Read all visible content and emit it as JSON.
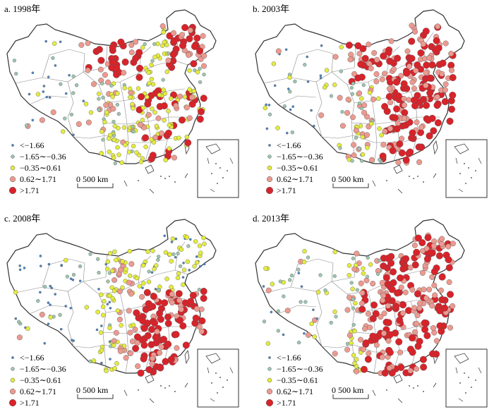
{
  "legend_classes": [
    {
      "label": "<−1.66",
      "color": "#4a86c8",
      "size": "smallest"
    },
    {
      "label": "−1.65∼−0.36",
      "color": "#9dc7b0",
      "size": "small"
    },
    {
      "label": "−0.35∼0.61",
      "color": "#e4ec3e",
      "size": "medium"
    },
    {
      "label": "0.62∼1.71",
      "color": "#ec9a90",
      "size": "large"
    },
    {
      "label": ">1.71",
      "color": "#d8232a",
      "size": "largest"
    }
  ],
  "scale_bar": {
    "label": "0  500 km"
  },
  "panels": [
    {
      "id": "a",
      "title": "a. 1998年"
    },
    {
      "id": "b",
      "title": "b. 2003年"
    },
    {
      "id": "c",
      "title": "c. 2008年"
    },
    {
      "id": "d",
      "title": "d. 2013年"
    }
  ],
  "colors": {
    "border": "#333333",
    "province_line": "#777777",
    "background": "#ffffff"
  }
}
